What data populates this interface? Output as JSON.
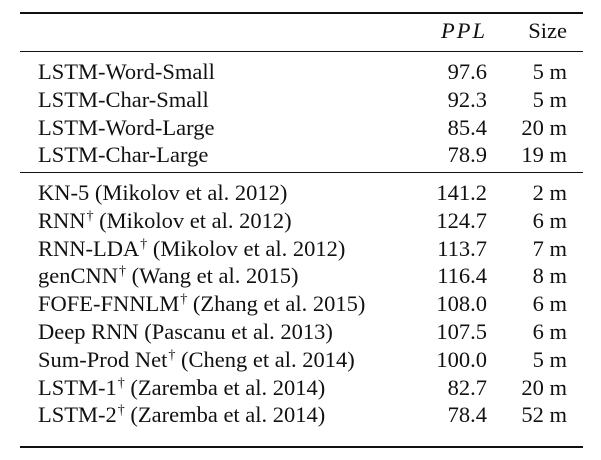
{
  "header": {
    "model": "",
    "ppl": "PPL",
    "size": "Size"
  },
  "groups": [
    {
      "rows": [
        {
          "model": "LSTM-Word-Small",
          "dagger": "",
          "citation": "",
          "ppl": "97.6",
          "size": "5 m"
        },
        {
          "model": "LSTM-Char-Small",
          "dagger": "",
          "citation": "",
          "ppl": "92.3",
          "size": "5 m"
        },
        {
          "model": "LSTM-Word-Large",
          "dagger": "",
          "citation": "",
          "ppl": "85.4",
          "size": "20 m"
        },
        {
          "model": "LSTM-Char-Large",
          "dagger": "",
          "citation": "",
          "ppl": "78.9",
          "size": "19 m"
        }
      ]
    },
    {
      "rows": [
        {
          "model": "KN-5",
          "dagger": "",
          "citation": "(Mikolov et al. 2012)",
          "ppl": "141.2",
          "size": "2 m"
        },
        {
          "model": "RNN",
          "dagger": "†",
          "citation": "(Mikolov et al. 2012)",
          "ppl": "124.7",
          "size": "6 m"
        },
        {
          "model": "RNN-LDA",
          "dagger": "†",
          "citation": "(Mikolov et al. 2012)",
          "ppl": "113.7",
          "size": "7 m"
        },
        {
          "model": "genCNN",
          "dagger": "†",
          "citation": "(Wang et al. 2015)",
          "ppl": "116.4",
          "size": "8 m"
        },
        {
          "model": "FOFE-FNNLM",
          "dagger": "†",
          "citation": "(Zhang et al. 2015)",
          "ppl": "108.0",
          "size": "6 m"
        },
        {
          "model": "Deep RNN",
          "dagger": "",
          "citation": "(Pascanu et al. 2013)",
          "ppl": "107.5",
          "size": "6 m"
        },
        {
          "model": "Sum-Prod Net",
          "dagger": "†",
          "citation": "(Cheng et al. 2014)",
          "ppl": "100.0",
          "size": "5 m"
        },
        {
          "model": "LSTM-1",
          "dagger": "†",
          "citation": "(Zaremba et al. 2014)",
          "ppl": "82.7",
          "size": "20 m"
        },
        {
          "model": "LSTM-2",
          "dagger": "†",
          "citation": "(Zaremba et al. 2014)",
          "ppl": "78.4",
          "size": "52 m"
        }
      ]
    }
  ]
}
